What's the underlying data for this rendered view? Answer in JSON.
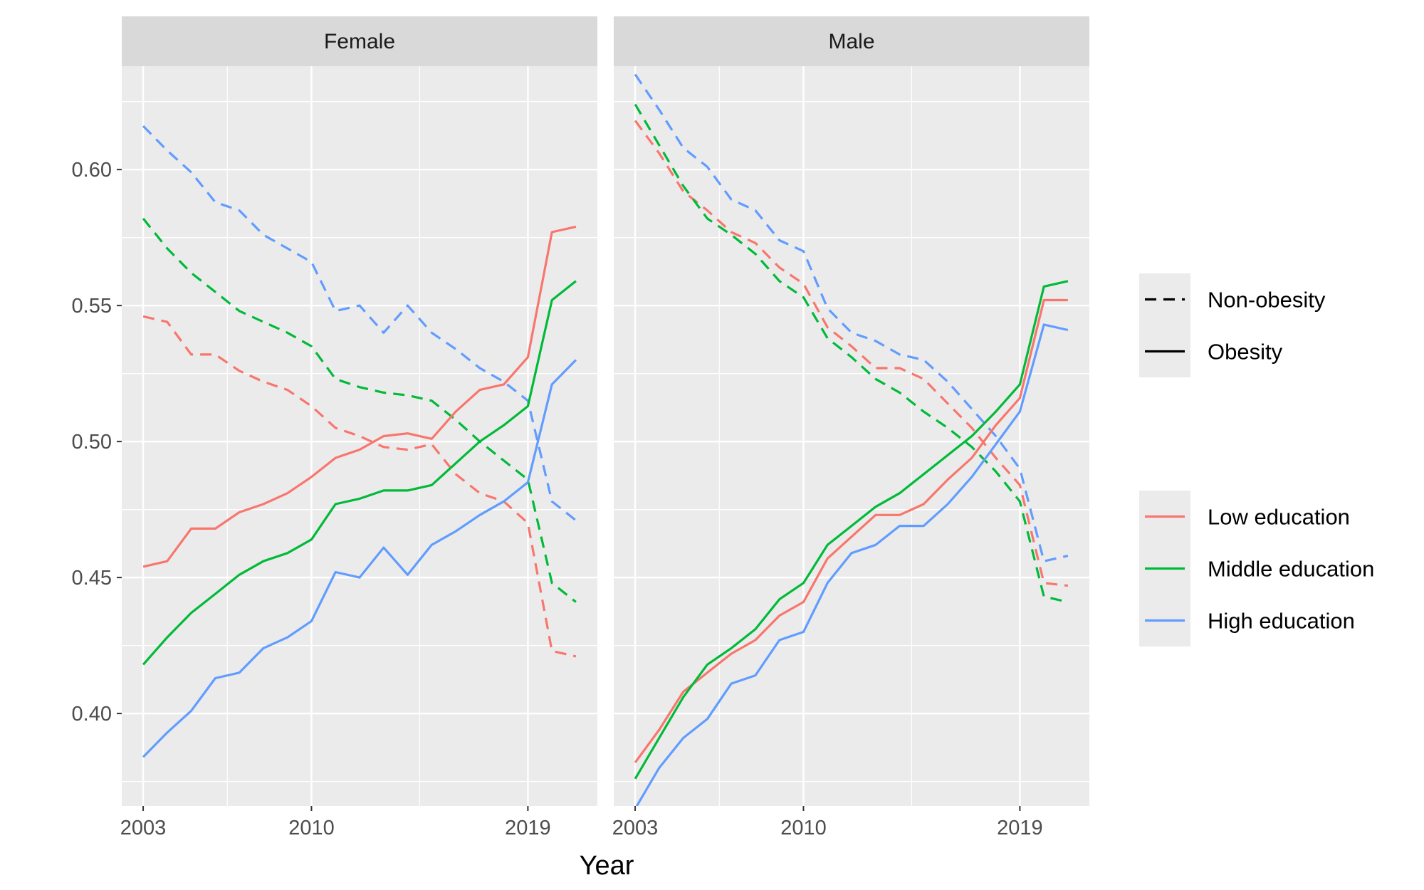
{
  "chart_data": {
    "type": "line",
    "xlabel": "Year",
    "ylabel": "",
    "title": "",
    "facets": [
      "Female",
      "Male"
    ],
    "x": [
      2003,
      2004,
      2005,
      2006,
      2007,
      2008,
      2009,
      2010,
      2011,
      2012,
      2013,
      2014,
      2015,
      2016,
      2017,
      2018,
      2019,
      2020,
      2021
    ],
    "x_ticks": [
      2003,
      2010,
      2019
    ],
    "xlim": [
      2003,
      2021
    ],
    "y_ticks": [
      0.4,
      0.45,
      0.5,
      0.55,
      0.6
    ],
    "y_tick_labels": [
      "0.40",
      "0.45",
      "0.50",
      "0.55",
      "0.60"
    ],
    "ylim": [
      0.366,
      0.638
    ],
    "grid": true,
    "legend_position": "right",
    "legend_linetype": {
      "entries": [
        {
          "label": "Non-obesity",
          "dash": "dashed"
        },
        {
          "label": "Obesity",
          "dash": "solid"
        }
      ]
    },
    "legend_color": {
      "entries": [
        {
          "label": "Low education",
          "color": "#F8766D"
        },
        {
          "label": "Middle education",
          "color": "#00BA38"
        },
        {
          "label": "High education",
          "color": "#619CFF"
        }
      ]
    },
    "series": [
      {
        "facet": "Female",
        "education": "Low education",
        "obesity": "Non-obesity",
        "color": "#F8766D",
        "dash": "dashed",
        "values": [
          0.546,
          0.544,
          0.532,
          0.532,
          0.526,
          0.522,
          0.519,
          0.513,
          0.505,
          0.502,
          0.498,
          0.497,
          0.499,
          0.488,
          0.481,
          0.478,
          0.47,
          0.423,
          0.421
        ]
      },
      {
        "facet": "Female",
        "education": "Middle education",
        "obesity": "Non-obesity",
        "color": "#00BA38",
        "dash": "dashed",
        "values": [
          0.582,
          0.571,
          0.562,
          0.555,
          0.548,
          0.544,
          0.54,
          0.535,
          0.523,
          0.52,
          0.518,
          0.517,
          0.515,
          0.508,
          0.5,
          0.493,
          0.486,
          0.448,
          0.441
        ]
      },
      {
        "facet": "Female",
        "education": "High education",
        "obesity": "Non-obesity",
        "color": "#619CFF",
        "dash": "dashed",
        "values": [
          0.616,
          0.607,
          0.599,
          0.588,
          0.585,
          0.576,
          0.571,
          0.566,
          0.548,
          0.55,
          0.54,
          0.55,
          0.54,
          0.534,
          0.527,
          0.522,
          0.515,
          0.478,
          0.471
        ]
      },
      {
        "facet": "Female",
        "education": "Low education",
        "obesity": "Obesity",
        "color": "#F8766D",
        "dash": "solid",
        "values": [
          0.454,
          0.456,
          0.468,
          0.468,
          0.474,
          0.477,
          0.481,
          0.487,
          0.494,
          0.497,
          0.502,
          0.503,
          0.501,
          0.511,
          0.519,
          0.521,
          0.531,
          0.577,
          0.579
        ]
      },
      {
        "facet": "Female",
        "education": "Middle education",
        "obesity": "Obesity",
        "color": "#00BA38",
        "dash": "solid",
        "values": [
          0.418,
          0.428,
          0.437,
          0.444,
          0.451,
          0.456,
          0.459,
          0.464,
          0.477,
          0.479,
          0.482,
          0.482,
          0.484,
          0.492,
          0.5,
          0.506,
          0.513,
          0.552,
          0.559
        ]
      },
      {
        "facet": "Female",
        "education": "High education",
        "obesity": "Obesity",
        "color": "#619CFF",
        "dash": "solid",
        "values": [
          0.384,
          0.393,
          0.401,
          0.413,
          0.415,
          0.424,
          0.428,
          0.434,
          0.452,
          0.45,
          0.461,
          0.451,
          0.462,
          0.467,
          0.473,
          0.478,
          0.485,
          0.521,
          0.53
        ]
      },
      {
        "facet": "Male",
        "education": "Low education",
        "obesity": "Non-obesity",
        "color": "#F8766D",
        "dash": "dashed",
        "values": [
          0.618,
          0.606,
          0.592,
          0.585,
          0.577,
          0.573,
          0.564,
          0.558,
          0.542,
          0.535,
          0.527,
          0.527,
          0.523,
          0.514,
          0.505,
          0.494,
          0.484,
          0.448,
          0.447
        ]
      },
      {
        "facet": "Male",
        "education": "Middle education",
        "obesity": "Non-obesity",
        "color": "#00BA38",
        "dash": "dashed",
        "values": [
          0.624,
          0.609,
          0.594,
          0.582,
          0.576,
          0.569,
          0.559,
          0.553,
          0.538,
          0.531,
          0.523,
          0.518,
          0.511,
          0.505,
          0.498,
          0.489,
          0.478,
          0.443,
          0.441
        ]
      },
      {
        "facet": "Male",
        "education": "High education",
        "obesity": "Non-obesity",
        "color": "#619CFF",
        "dash": "dashed",
        "values": [
          0.635,
          0.622,
          0.608,
          0.601,
          0.589,
          0.585,
          0.574,
          0.57,
          0.549,
          0.54,
          0.537,
          0.532,
          0.53,
          0.522,
          0.512,
          0.502,
          0.49,
          0.456,
          0.458
        ]
      },
      {
        "facet": "Male",
        "education": "Low education",
        "obesity": "Obesity",
        "color": "#F8766D",
        "dash": "solid",
        "values": [
          0.382,
          0.394,
          0.408,
          0.415,
          0.422,
          0.427,
          0.436,
          0.441,
          0.457,
          0.465,
          0.473,
          0.473,
          0.477,
          0.486,
          0.494,
          0.506,
          0.516,
          0.552,
          0.552
        ]
      },
      {
        "facet": "Male",
        "education": "Middle education",
        "obesity": "Obesity",
        "color": "#00BA38",
        "dash": "solid",
        "values": [
          0.376,
          0.391,
          0.406,
          0.418,
          0.424,
          0.431,
          0.442,
          0.448,
          0.462,
          0.469,
          0.476,
          0.481,
          0.488,
          0.495,
          0.502,
          0.511,
          0.521,
          0.557,
          0.559
        ]
      },
      {
        "facet": "Male",
        "education": "High education",
        "obesity": "Obesity",
        "color": "#619CFF",
        "dash": "solid",
        "values": [
          0.365,
          0.38,
          0.391,
          0.398,
          0.411,
          0.414,
          0.427,
          0.43,
          0.448,
          0.459,
          0.462,
          0.469,
          0.469,
          0.477,
          0.487,
          0.499,
          0.511,
          0.543,
          0.541
        ]
      }
    ]
  }
}
